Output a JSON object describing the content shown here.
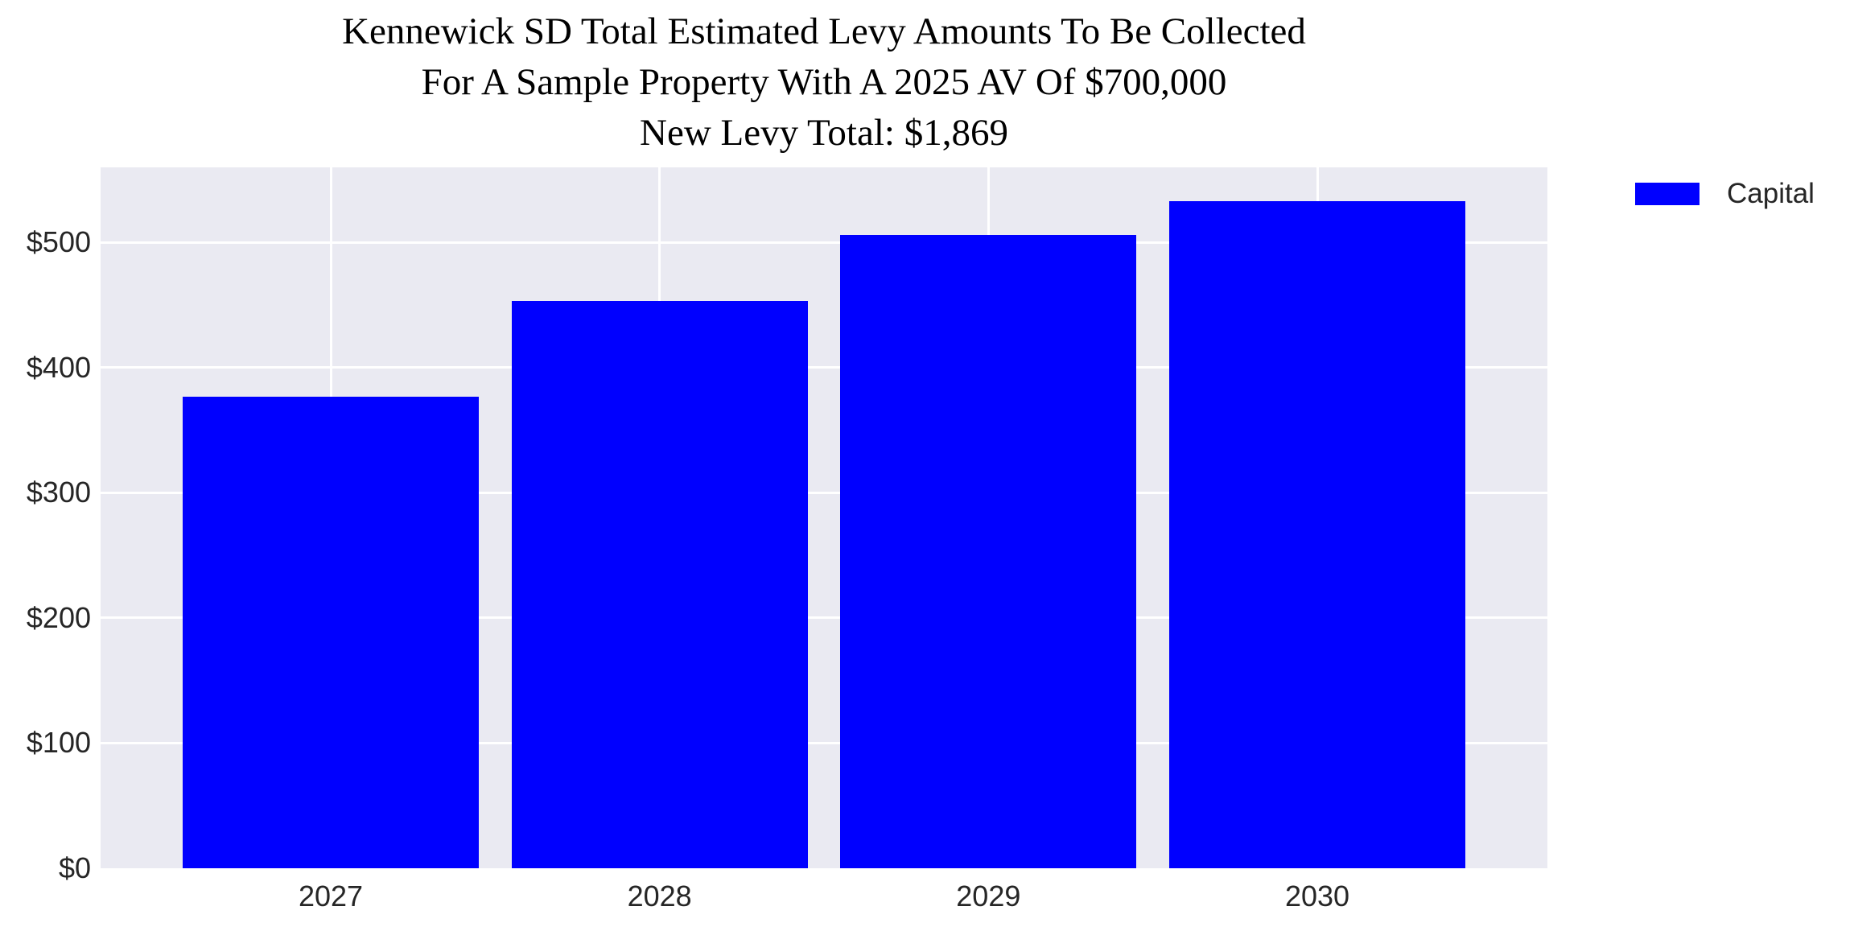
{
  "title": {
    "line1": "Kennewick SD Total Estimated Levy Amounts To Be Collected",
    "line2": "For A Sample Property With A 2025 AV Of $700,000",
    "line3": "New Levy Total: $1,869"
  },
  "legend": {
    "label": "Capital",
    "swatch_color": "#0000FF",
    "position": "outside-upper-right"
  },
  "chart_data": {
    "type": "bar",
    "title": "Kennewick SD Total Estimated Levy Amounts To Be Collected For A Sample Property With A 2025 AV Of $700,000 New Levy Total: $1,869",
    "categories": [
      "2027",
      "2028",
      "2029",
      "2030"
    ],
    "series": [
      {
        "name": "Capital",
        "values": [
          377,
          453,
          506,
          533
        ]
      }
    ],
    "total_label_value": "$1,869",
    "xlabel": "",
    "ylabel": "",
    "ylim": [
      0,
      560
    ],
    "ytick_values": [
      0,
      100,
      200,
      300,
      400,
      500
    ],
    "ytick_labels": [
      "$0",
      "$100",
      "$200",
      "$300",
      "$400",
      "$500"
    ],
    "grid": true,
    "legend_position": "upper right outside",
    "colors": {
      "bar": "#0000FF",
      "plot_background": "#EAEAF2",
      "gridline": "#FFFFFF",
      "tick_text": "#262626",
      "title_text": "#000000",
      "figure_background": "#FFFFFF"
    }
  }
}
